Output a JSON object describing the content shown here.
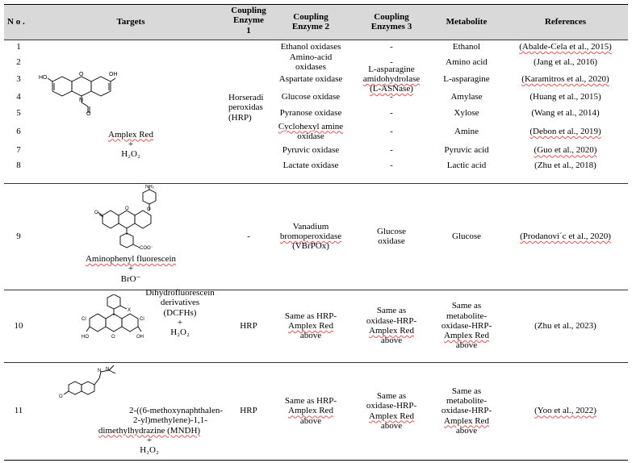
{
  "headers": {
    "no": "N o .",
    "targets": "Targets",
    "enzyme1": [
      "Coupling",
      "Enzyme",
      "1"
    ],
    "enzyme2": [
      "Coupling",
      "Enzyme 2"
    ],
    "enzyme3": [
      "Coupling",
      "Enzymes 3"
    ],
    "metabolite": "Metabolite",
    "references": "References"
  },
  "amplex": {
    "name": "Amplex Red",
    "plus": "+",
    "reagent": "H₂O₂",
    "enzyme1": [
      "Horseradi",
      "peroxidas",
      "(HRP)"
    ],
    "rows": [
      {
        "no": "1",
        "enzyme2": [
          "Ethanol oxidases"
        ],
        "enzyme3": [
          "-"
        ],
        "metabolite": "Ethanol",
        "ref": "(Abalde-Cela et al., 2015)"
      },
      {
        "no": "2",
        "enzyme2": [
          "Amino-acid",
          "oxidases"
        ],
        "enzyme3": [
          "-"
        ],
        "metabolite": "Amino acid",
        "ref": "(Jang et al., 2016)"
      },
      {
        "no": "3",
        "enzyme2": [
          "Aspartate oxidase"
        ],
        "enzyme3": [
          "L-asparagine",
          "amidohydrolase",
          "(L-ASNase)"
        ],
        "metabolite": "L-asparagine",
        "ref": "(Karamitros et al., 2020)"
      },
      {
        "no": "4",
        "enzyme2": [
          "Glucose oxidase"
        ],
        "enzyme3": [
          "-"
        ],
        "metabolite": "Amylase",
        "ref": "(Huang et al., 2015)"
      },
      {
        "no": "5",
        "enzyme2": [
          "Pyranose oxidase"
        ],
        "enzyme3": [
          "-"
        ],
        "metabolite": "Xylose",
        "ref": "(Wang et al., 2014)"
      },
      {
        "no": "6",
        "enzyme2": [
          "Cyclohexyl amine",
          "oxidase"
        ],
        "enzyme3": [
          "-"
        ],
        "metabolite": "Amine",
        "ref": "(Debon et al., 2019)"
      },
      {
        "no": "7",
        "enzyme2": [
          "Pyruvic oxidase"
        ],
        "enzyme3": [
          "-"
        ],
        "metabolite": "Pyruvic acid",
        "ref": "(Guo et al., 2020)"
      },
      {
        "no": "8",
        "enzyme2": [
          "Lactate oxidase"
        ],
        "enzyme3": [
          "-"
        ],
        "metabolite": "Lactic acid",
        "ref": "(Zhu et al., 2018)"
      }
    ]
  },
  "row9": {
    "no": "9",
    "target": [
      "Aminophenyl fluorescein",
      "+",
      "BrO⁻"
    ],
    "enzyme1": "-",
    "enzyme2": [
      "Vanadium",
      "bromoperoxidase",
      "(VBrPOx)"
    ],
    "enzyme3": [
      "Glucose",
      "oxidase"
    ],
    "metabolite": "Glucose",
    "ref": "(Prodanovi´c et al., 2020)"
  },
  "row10": {
    "no": "10",
    "target": [
      "Dihydrofluorescein",
      "derivatives",
      "(DCFHs)",
      "+",
      "H₂O₂"
    ],
    "enzyme1": "HRP",
    "enzyme2": [
      "Same as HRP-",
      "Amplex Red",
      "above"
    ],
    "enzyme3": [
      "Same as",
      "oxidase-HRP-",
      "Amplex Red",
      "above"
    ],
    "metabolite": [
      "Same as",
      "metabolite-",
      "oxidase-HRP-",
      "Amplex Red",
      "above"
    ],
    "ref": "(Zhu et al., 2023)"
  },
  "row11": {
    "no": "11",
    "target": [
      "2-((6-methoxynaphthalen-",
      "2-yl)methylene)-1,1-",
      "dimethylhydrazine (MNDH)",
      "+",
      "H₂O₂"
    ],
    "enzyme1": "HRP",
    "enzyme2": [
      "Same as HRP-",
      "Amplex Red",
      "above"
    ],
    "enzyme3": [
      "Same as",
      "oxidase-HRP-",
      "Amplex Red",
      "above"
    ],
    "metabolite": [
      "Same as",
      "metabolite-",
      "oxidase-HRP-",
      "Amplex Red",
      "above"
    ],
    "ref": "(Yoo et al., 2022)"
  },
  "molecule_labels": {
    "amplex": [
      "HO",
      "OH",
      "N",
      "O",
      "O"
    ],
    "apf": [
      "NH₂",
      "O",
      "O",
      "O",
      "COO⁻"
    ],
    "dcfh": [
      "Cl",
      "Cl",
      "HO",
      "OH",
      "O",
      "X"
    ],
    "mndh": [
      "N",
      "N",
      "O"
    ]
  }
}
